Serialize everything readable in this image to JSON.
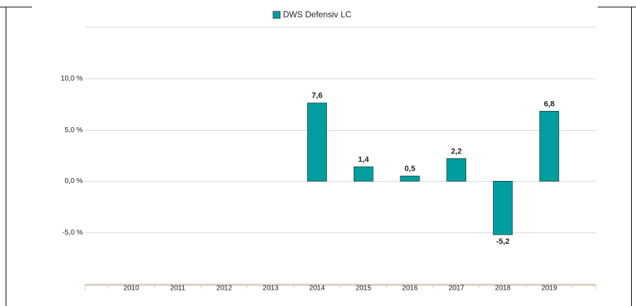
{
  "chart_data": {
    "type": "bar",
    "legend": "DWS Defensiv  LC",
    "categories": [
      "2010",
      "2011",
      "2012",
      "2013",
      "2014",
      "2015",
      "2016",
      "2017",
      "2018",
      "2019"
    ],
    "values": [
      null,
      null,
      null,
      null,
      7.6,
      1.4,
      0.5,
      2.2,
      -5.2,
      6.8
    ],
    "value_labels": [
      null,
      null,
      null,
      null,
      "7,6",
      "1,4",
      "0,5",
      "2,2",
      "-5,2",
      "6,8"
    ],
    "color": "#009e9e",
    "ylim": [
      -10,
      15
    ],
    "yticks": [
      {
        "value": 10,
        "label": "10,0 %"
      },
      {
        "value": 5,
        "label": "5,0 %"
      },
      {
        "value": 0,
        "label": "0,0 %"
      },
      {
        "value": -5,
        "label": "-5,0 %"
      }
    ],
    "grid": true
  }
}
